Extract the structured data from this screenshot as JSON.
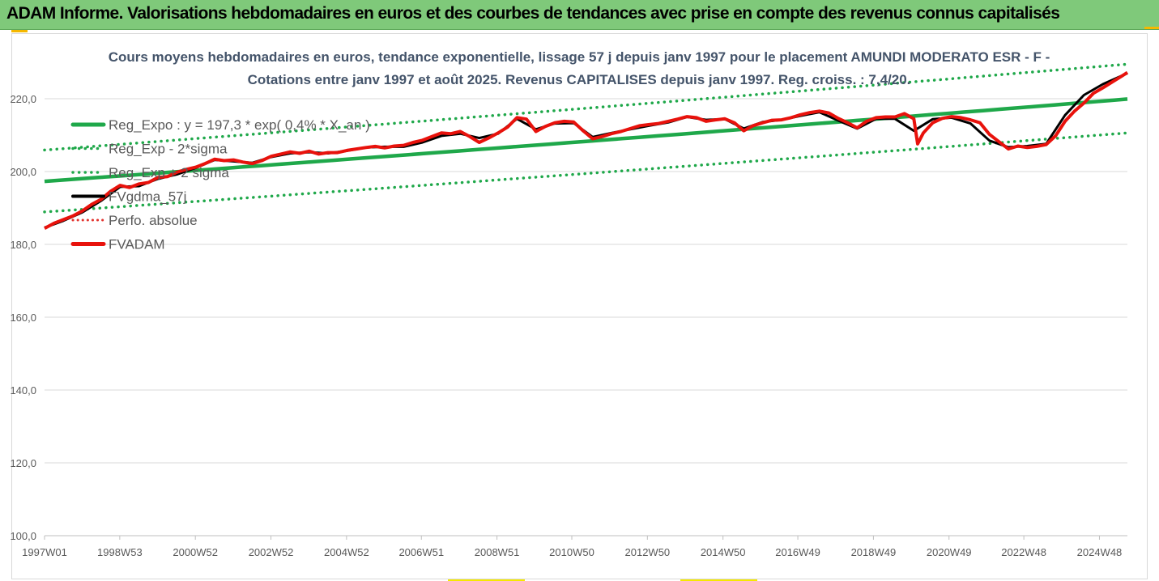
{
  "banner": {
    "title": "ADAM Informe. Valorisations hebdomadaires en euros et des courbes de tendances avec prise en compte des revenus connus capitalisés"
  },
  "colors": {
    "banner_bg": "#7fc97a",
    "corner_accent": "#f5b800",
    "trend": "#1fa84a",
    "band": "#1fa84a",
    "smoothed": "#000000",
    "absolute": "#e3342f",
    "fvadam": "#e8120c"
  },
  "chart_data": {
    "type": "line",
    "title_line1": "Cours moyens hebdomadaires en euros, tendance exponentielle, lissage 57 j depuis janv 1997 pour le placement AMUNDI MODERATO ESR - F -",
    "title_line2": "Cotations entre janv 1997 et août 2025.  Revenus CAPITALISES depuis janv 1997. Reg. croiss. : 7,4/20.",
    "xlabel": "",
    "ylabel": "",
    "ylim": [
      100,
      230
    ],
    "y_ticks": [
      "100,0",
      "120,0",
      "140,0",
      "160,0",
      "180,0",
      "200,0",
      "220,0"
    ],
    "y_tick_values": [
      100,
      120,
      140,
      160,
      180,
      200,
      220
    ],
    "x_range": [
      1997.0,
      2025.65
    ],
    "x_ticks": [
      {
        "label": "1997W01",
        "x": 1997.0
      },
      {
        "label": "1998W53",
        "x": 1998.99
      },
      {
        "label": "2000W52",
        "x": 2000.99
      },
      {
        "label": "2002W52",
        "x": 2002.99
      },
      {
        "label": "2004W52",
        "x": 2004.99
      },
      {
        "label": "2006W51",
        "x": 2006.97
      },
      {
        "label": "2008W51",
        "x": 2008.97
      },
      {
        "label": "2010W50",
        "x": 2010.95
      },
      {
        "label": "2012W50",
        "x": 2012.95
      },
      {
        "label": "2014W50",
        "x": 2014.95
      },
      {
        "label": "2016W49",
        "x": 2016.93
      },
      {
        "label": "2018W49",
        "x": 2018.93
      },
      {
        "label": "2020W49",
        "x": 2020.93
      },
      {
        "label": "2022W48",
        "x": 2022.91
      },
      {
        "label": "2024W48",
        "x": 2024.91
      }
    ],
    "grid": {
      "horizontal": true,
      "vertical": false
    },
    "legend_position": "top-left",
    "series": [
      {
        "name": "Reg_Expo : y = 197,3 * exp( 0,4% * X_an )",
        "kind": "trend",
        "x": [
          1997.0,
          2025.65
        ],
        "values": [
          197.3,
          219.9
        ]
      },
      {
        "name": "Reg_Exp - 2*sigma",
        "kind": "band_low",
        "x": [
          1997.0,
          2025.65
        ],
        "values": [
          188.9,
          210.6
        ]
      },
      {
        "name": "Reg_Exp + 2 sigma",
        "kind": "band_high",
        "x": [
          1997.0,
          2025.65
        ],
        "values": [
          205.9,
          229.5
        ]
      },
      {
        "name": "FVgdma_57j",
        "kind": "smoothed",
        "x": [
          1997.0,
          1997.5,
          1998.0,
          1998.5,
          1999.0,
          1999.5,
          2000.0,
          2000.5,
          2001.0,
          2001.5,
          2002.0,
          2002.5,
          2003.0,
          2003.5,
          2004.0,
          2004.5,
          2005.0,
          2005.5,
          2006.0,
          2006.5,
          2007.0,
          2007.5,
          2008.0,
          2008.5,
          2009.0,
          2009.5,
          2010.0,
          2010.5,
          2011.0,
          2011.5,
          2012.0,
          2012.5,
          2013.0,
          2013.5,
          2014.0,
          2014.5,
          2015.0,
          2015.5,
          2016.0,
          2016.5,
          2017.0,
          2017.5,
          2018.0,
          2018.5,
          2019.0,
          2019.5,
          2020.0,
          2020.5,
          2021.0,
          2021.5,
          2022.0,
          2022.5,
          2023.0,
          2023.5,
          2024.0,
          2024.5,
          2025.0,
          2025.65
        ],
        "values": [
          184.6,
          186.5,
          188.8,
          192.0,
          195.8,
          196.0,
          198.0,
          199.2,
          201.0,
          203.2,
          202.8,
          202.4,
          204.0,
          205.0,
          205.3,
          205.0,
          205.7,
          206.6,
          206.8,
          206.8,
          208.0,
          209.8,
          210.4,
          209.2,
          210.4,
          214.5,
          211.6,
          213.2,
          213.3,
          209.5,
          210.6,
          211.6,
          212.6,
          213.5,
          215.0,
          214.2,
          214.4,
          211.8,
          213.6,
          214.2,
          215.3,
          216.3,
          214.0,
          211.8,
          214.5,
          214.5,
          211.2,
          214.4,
          214.8,
          213.2,
          208.5,
          206.7,
          207.0,
          207.6,
          215.5,
          221.0,
          224.0,
          227.0
        ]
      },
      {
        "name": "Perfo. absolue",
        "kind": "absolute",
        "x": [
          1997.0,
          2025.65
        ],
        "values": [
          184.4,
          227.2
        ]
      },
      {
        "name": "FVADAM",
        "kind": "fvadam",
        "x": [
          1997.0,
          1997.25,
          1997.5,
          1997.75,
          1998.0,
          1998.25,
          1998.5,
          1998.75,
          1999.0,
          1999.25,
          1999.5,
          1999.75,
          2000.0,
          2000.25,
          2000.5,
          2000.75,
          2001.0,
          2001.25,
          2001.5,
          2001.75,
          2002.0,
          2002.25,
          2002.5,
          2002.75,
          2003.0,
          2003.25,
          2003.5,
          2003.75,
          2004.0,
          2004.25,
          2004.5,
          2004.75,
          2005.0,
          2005.25,
          2005.5,
          2005.75,
          2006.0,
          2006.25,
          2006.5,
          2006.75,
          2007.0,
          2007.25,
          2007.5,
          2007.75,
          2008.0,
          2008.25,
          2008.5,
          2008.75,
          2009.0,
          2009.25,
          2009.5,
          2009.75,
          2010.0,
          2010.25,
          2010.5,
          2010.75,
          2011.0,
          2011.25,
          2011.5,
          2011.75,
          2012.0,
          2012.25,
          2012.5,
          2012.75,
          2013.0,
          2013.25,
          2013.5,
          2013.75,
          2014.0,
          2014.25,
          2014.5,
          2014.75,
          2015.0,
          2015.25,
          2015.5,
          2015.75,
          2016.0,
          2016.25,
          2016.5,
          2016.75,
          2017.0,
          2017.25,
          2017.5,
          2017.75,
          2018.0,
          2018.25,
          2018.5,
          2018.75,
          2019.0,
          2019.25,
          2019.5,
          2019.75,
          2020.0,
          2020.1,
          2020.25,
          2020.5,
          2020.75,
          2021.0,
          2021.25,
          2021.5,
          2021.75,
          2022.0,
          2022.25,
          2022.5,
          2022.75,
          2023.0,
          2023.25,
          2023.5,
          2023.75,
          2024.0,
          2024.25,
          2024.5,
          2024.75,
          2025.0,
          2025.25,
          2025.5,
          2025.65
        ],
        "values": [
          184.4,
          185.8,
          186.8,
          187.8,
          189.2,
          191.0,
          192.4,
          194.6,
          196.2,
          195.6,
          196.6,
          197.0,
          198.4,
          198.6,
          199.8,
          200.6,
          201.2,
          202.2,
          203.4,
          203.0,
          203.2,
          202.6,
          202.2,
          203.0,
          204.2,
          204.8,
          205.4,
          205.0,
          205.6,
          204.8,
          205.2,
          205.2,
          205.8,
          206.2,
          206.6,
          206.9,
          206.5,
          207.0,
          207.2,
          208.0,
          208.6,
          209.6,
          210.6,
          210.4,
          211.0,
          209.6,
          208.0,
          209.2,
          210.6,
          212.2,
          214.8,
          214.4,
          211.0,
          212.4,
          213.4,
          213.8,
          213.6,
          211.2,
          209.0,
          209.6,
          210.4,
          211.0,
          211.8,
          212.6,
          212.9,
          213.2,
          213.8,
          214.4,
          215.1,
          214.8,
          213.8,
          214.2,
          214.5,
          213.4,
          211.2,
          212.6,
          213.4,
          214.1,
          214.2,
          214.8,
          215.6,
          216.2,
          216.6,
          216.1,
          214.6,
          213.4,
          212.0,
          213.8,
          214.8,
          215.0,
          215.0,
          215.9,
          214.5,
          207.6,
          210.6,
          213.4,
          214.6,
          215.1,
          214.8,
          214.2,
          213.4,
          210.2,
          208.2,
          206.2,
          207.0,
          206.6,
          206.9,
          207.4,
          209.8,
          213.8,
          216.6,
          218.8,
          221.5,
          223.0,
          224.6,
          226.2,
          227.2
        ]
      }
    ],
    "legend": [
      {
        "label": "Reg_Expo : y = 197,3 * exp( 0,4% * X_an )",
        "style": "solid-green"
      },
      {
        "label": "Reg_Exp - 2*sigma",
        "style": "dotted-green"
      },
      {
        "label": "Reg_Exp + 2 sigma",
        "style": "dotted-green"
      },
      {
        "label": "FVgdma_57j",
        "style": "solid-black"
      },
      {
        "label": "Perfo. absolue",
        "style": "dotted-red"
      },
      {
        "label": "FVADAM",
        "style": "solid-red"
      }
    ]
  }
}
